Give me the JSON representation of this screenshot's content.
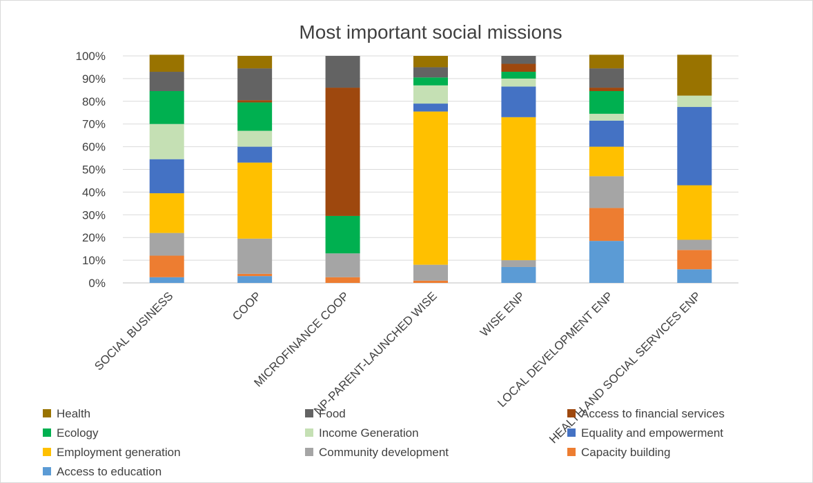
{
  "chart_data": {
    "type": "bar",
    "stacked": true,
    "title": "Most important social missions",
    "xlabel": "",
    "ylabel": "",
    "ylim": [
      0,
      100
    ],
    "yticks": [
      "0%",
      "10%",
      "20%",
      "30%",
      "40%",
      "50%",
      "60%",
      "70%",
      "80%",
      "90%",
      "100%"
    ],
    "grid": true,
    "legend_position": "bottom",
    "categories": [
      "SOCIAL BUSINESS",
      "COOP",
      "MICROFINANCE COOP",
      "NP-PARENT-LAUNCHED WISE",
      "WISE ENP",
      "LOCAL DEVELOPMENT ENP",
      "HEALTH AND SOCIAL SERVICES ENP"
    ],
    "series": [
      {
        "name": "Access to education",
        "color": "#5B9BD5",
        "values": [
          2.5,
          3,
          0,
          0,
          7,
          18.5,
          6
        ]
      },
      {
        "name": "Capacity building",
        "color": "#ED7D31",
        "values": [
          9.5,
          1,
          2.5,
          1,
          0,
          14.5,
          8.5
        ]
      },
      {
        "name": "Community development",
        "color": "#A5A5A5",
        "values": [
          10,
          15.5,
          10.5,
          7,
          3,
          14,
          4.5
        ]
      },
      {
        "name": "Employment generation",
        "color": "#FFC000",
        "values": [
          17.5,
          33.5,
          0,
          67.5,
          63,
          13,
          24
        ]
      },
      {
        "name": "Equality and empowerment",
        "color": "#4472C4",
        "values": [
          15,
          7,
          0,
          3.5,
          13.5,
          11.5,
          34.5
        ]
      },
      {
        "name": "Income Generation",
        "color": "#C5E0B4",
        "values": [
          15.5,
          7,
          0,
          8,
          3.5,
          3,
          5
        ]
      },
      {
        "name": "Ecology",
        "color": "#00B050",
        "values": [
          14.5,
          12.5,
          16.5,
          3.5,
          3,
          10,
          0
        ]
      },
      {
        "name": "Access to financial services",
        "color": "#9E480E",
        "values": [
          0,
          1,
          56.5,
          0,
          3.5,
          1.5,
          0
        ]
      },
      {
        "name": "Food",
        "color": "#636363",
        "values": [
          8.5,
          14,
          14,
          4.5,
          3.5,
          8.5,
          0
        ]
      },
      {
        "name": "Health",
        "color": "#997300",
        "values": [
          7.5,
          5.5,
          0,
          5,
          0,
          6,
          18
        ]
      }
    ],
    "legend_order": [
      "Health",
      "Food",
      "Access to financial services",
      "Ecology",
      "Income Generation",
      "Equality and empowerment",
      "Employment generation",
      "Community development",
      "Capacity building",
      "Access to education"
    ]
  }
}
